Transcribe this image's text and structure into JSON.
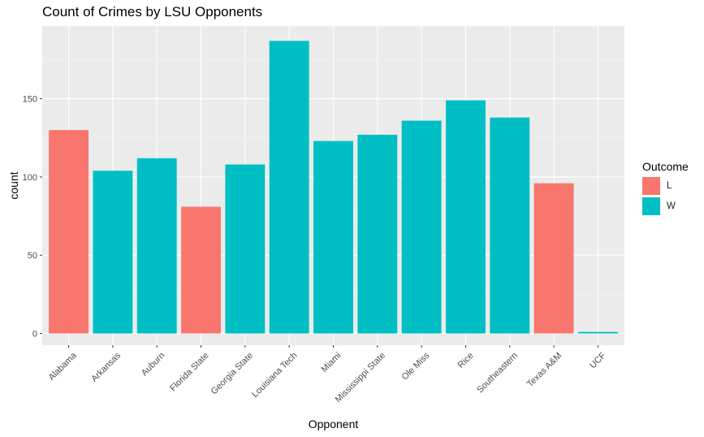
{
  "chart_data": {
    "type": "bar",
    "title": "Count of Crimes by LSU Opponents",
    "xlabel": "Opponent",
    "ylabel": "count",
    "categories": [
      "Alabama",
      "Arkansas",
      "Auburn",
      "Florida State",
      "Georgia State",
      "Louisiana Tech",
      "Miami",
      "Mississippi State",
      "Ole Miss",
      "Rice",
      "Southeastern",
      "Texas A&M",
      "UCF"
    ],
    "values": [
      130,
      104,
      112,
      81,
      108,
      187,
      123,
      127,
      136,
      149,
      138,
      96,
      1
    ],
    "outcome": [
      "L",
      "W",
      "W",
      "L",
      "W",
      "W",
      "W",
      "W",
      "W",
      "W",
      "W",
      "L",
      "W"
    ],
    "yticks": [
      0,
      50,
      100,
      150
    ],
    "ylim": [
      -7.5,
      196.5
    ],
    "grid": true,
    "legend": {
      "title": "Outcome",
      "position": "right",
      "items": [
        {
          "label": "L",
          "color": "#F8766D"
        },
        {
          "label": "W",
          "color": "#00BFC4"
        }
      ]
    }
  }
}
